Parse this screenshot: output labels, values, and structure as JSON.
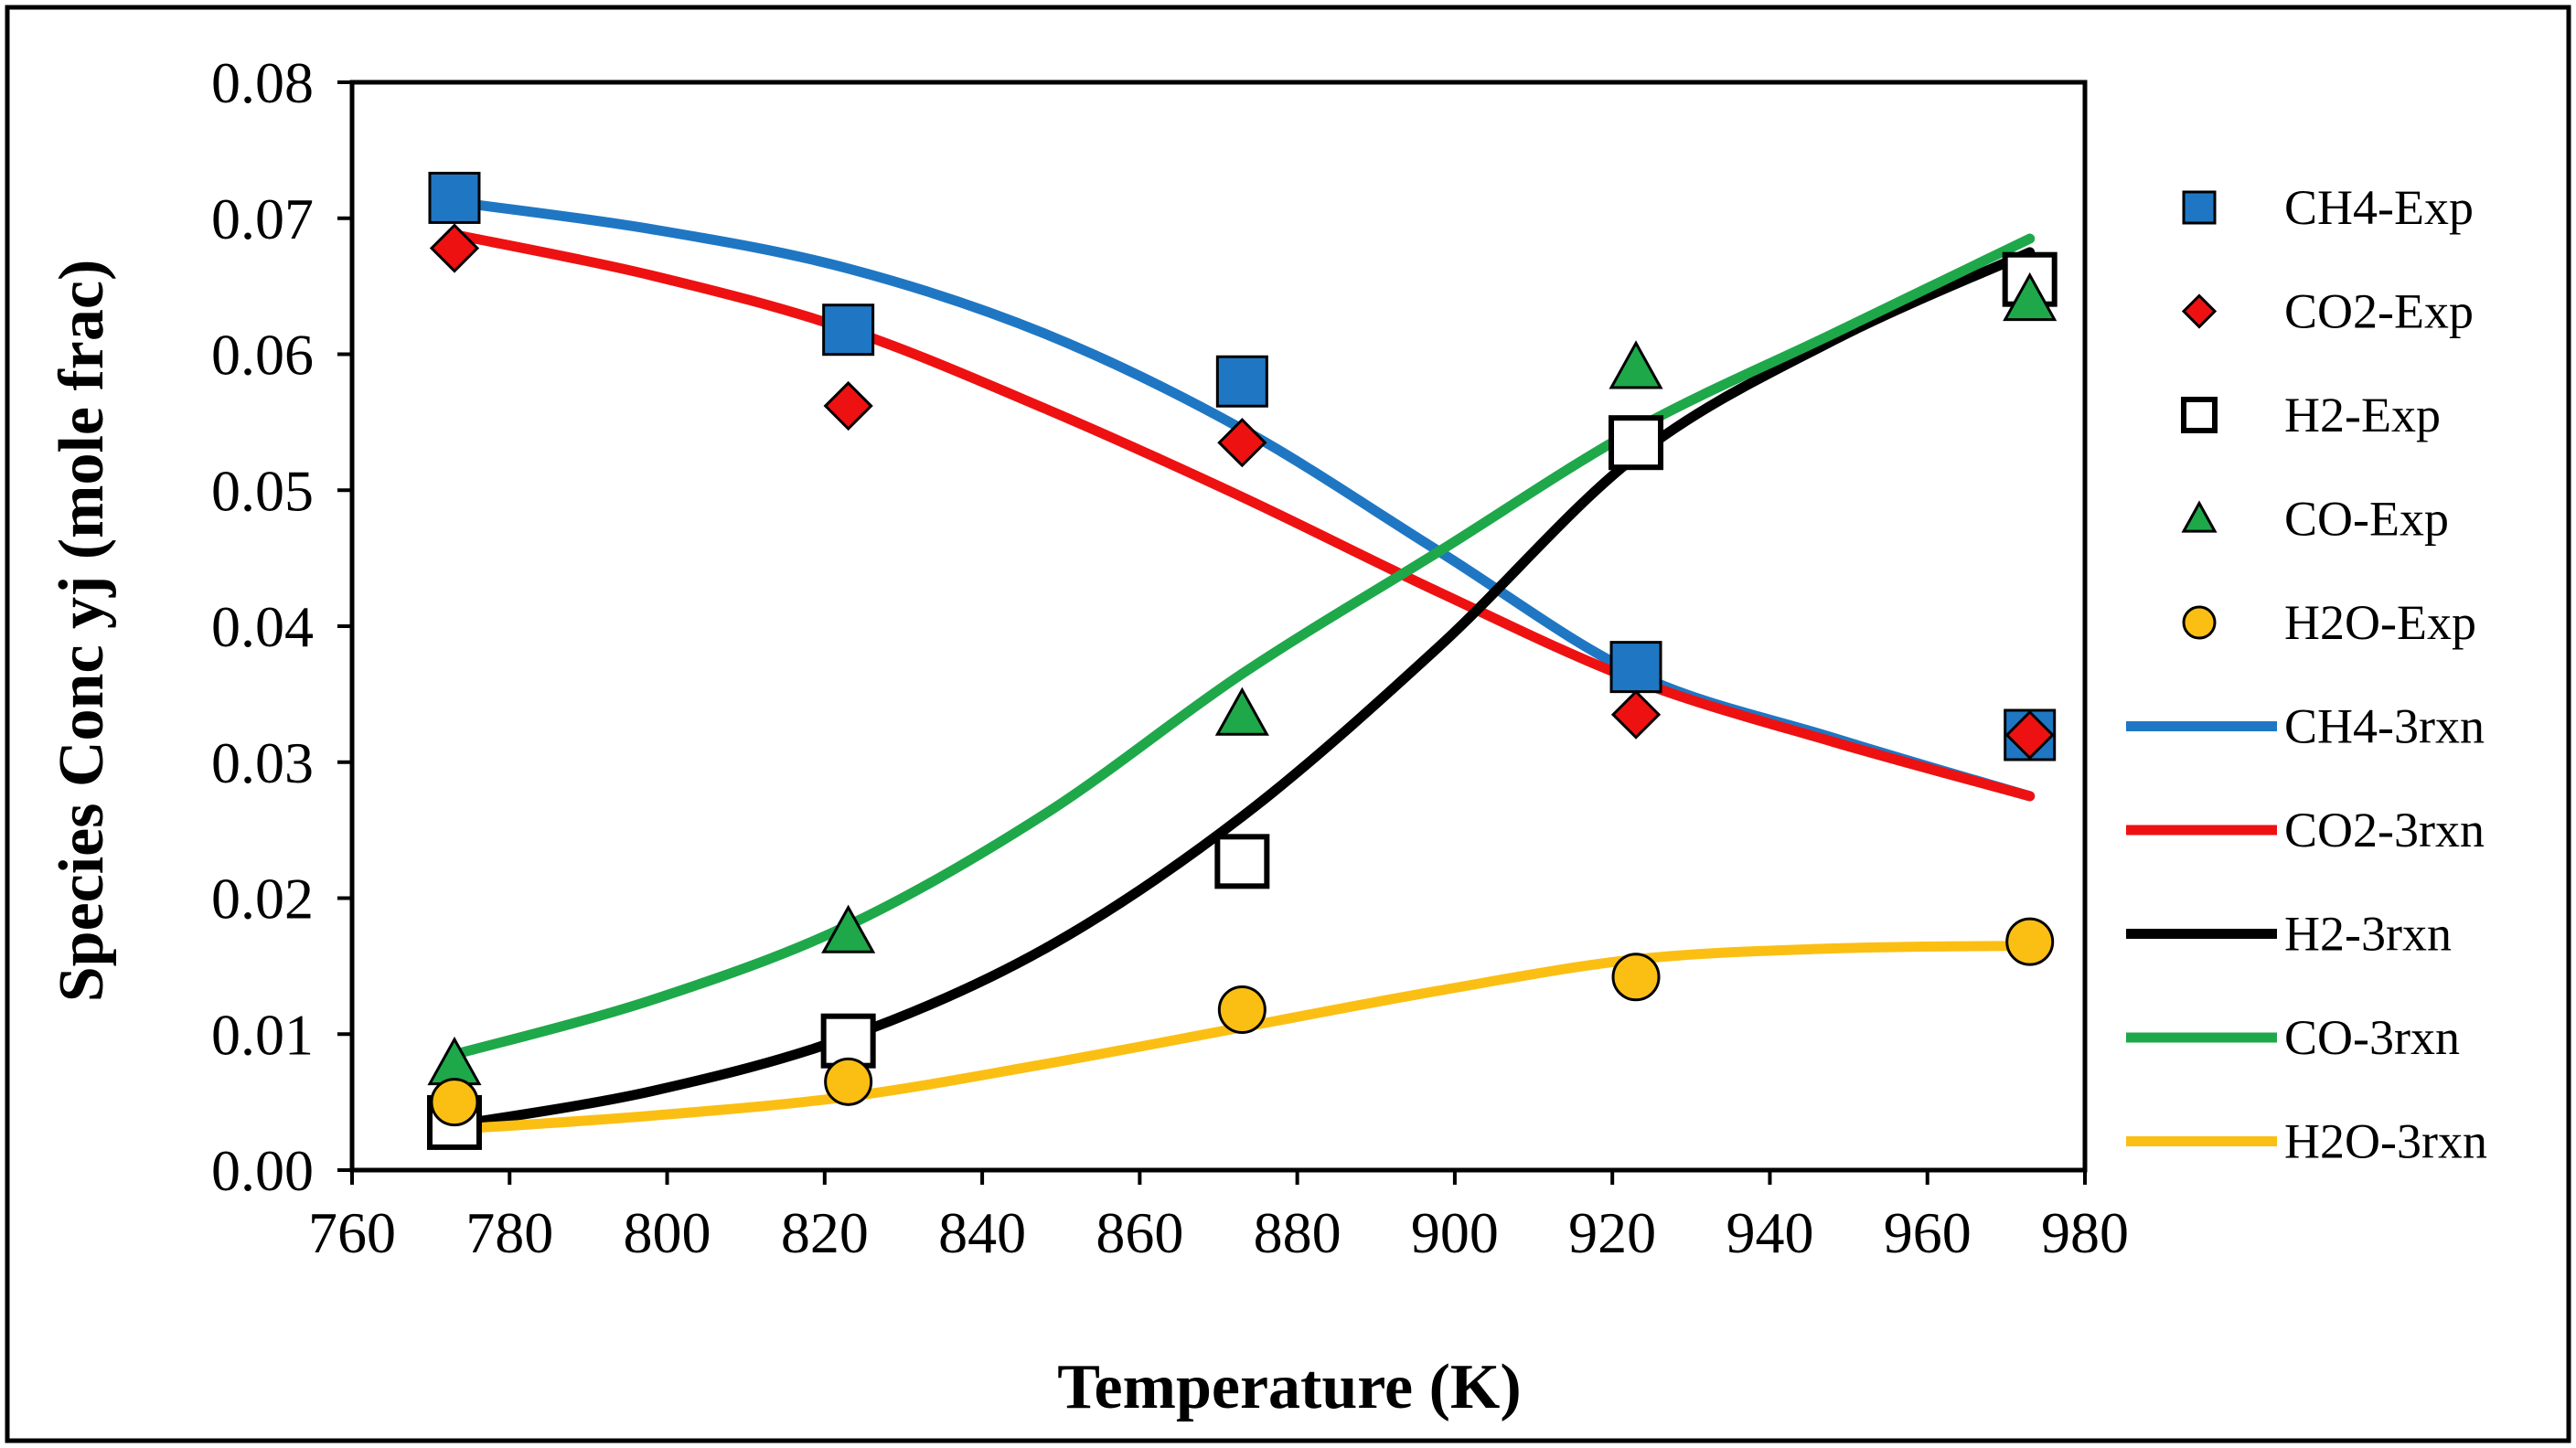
{
  "chart_data": {
    "type": "scatter",
    "title": "",
    "xlabel": "Temperature (K)",
    "ylabel": "Species Conc yj (mole frac)",
    "xlim": [
      760,
      980
    ],
    "ylim": [
      0,
      0.08
    ],
    "xticks": [
      "760",
      "780",
      "800",
      "820",
      "840",
      "860",
      "880",
      "900",
      "920",
      "940",
      "960",
      "980"
    ],
    "yticks": [
      "0.00",
      "0.01",
      "0.02",
      "0.03",
      "0.04",
      "0.05",
      "0.06",
      "0.07",
      "0.08"
    ],
    "grid": false,
    "legend_position": "right",
    "markers": [
      {
        "name": "CH4-Exp",
        "marker": "square",
        "color": "#1f77c4",
        "x": [
          773,
          823,
          873,
          923,
          973
        ],
        "y": [
          0.0715,
          0.0618,
          0.058,
          0.037,
          0.032
        ]
      },
      {
        "name": "CO2-Exp",
        "marker": "diamond",
        "color": "#ee1111",
        "x": [
          773,
          823,
          873,
          923,
          973
        ],
        "y": [
          0.0678,
          0.0562,
          0.0535,
          0.0335,
          0.032
        ]
      },
      {
        "name": "H2-Exp",
        "marker": "open-square",
        "color": "#ffffff",
        "x": [
          773,
          823,
          873,
          923,
          973
        ],
        "y": [
          0.0035,
          0.0095,
          0.0227,
          0.0535,
          0.0655
        ]
      },
      {
        "name": "CO-Exp",
        "marker": "triangle",
        "color": "#1ea84a",
        "x": [
          773,
          823,
          873,
          923,
          973
        ],
        "y": [
          0.0078,
          0.0175,
          0.0335,
          0.059,
          0.064
        ]
      },
      {
        "name": "H2O-Exp",
        "marker": "circle",
        "color": "#fbbf14",
        "x": [
          773,
          823,
          873,
          923,
          973
        ],
        "y": [
          0.005,
          0.0065,
          0.0118,
          0.0142,
          0.0168
        ]
      }
    ],
    "lines": [
      {
        "name": "CH4-3rxn",
        "color": "#1f77c4",
        "x": [
          773,
          798,
          823,
          848,
          873,
          898,
          923,
          948,
          973
        ],
        "y": [
          0.0712,
          0.0692,
          0.0663,
          0.0615,
          0.0545,
          0.0455,
          0.0365,
          0.0318,
          0.0275
        ]
      },
      {
        "name": "CO2-3rxn",
        "color": "#ee1111",
        "x": [
          773,
          798,
          823,
          848,
          873,
          898,
          923,
          948,
          973
        ],
        "y": [
          0.0688,
          0.0658,
          0.0618,
          0.056,
          0.0495,
          0.0425,
          0.036,
          0.0315,
          0.0275
        ]
      },
      {
        "name": "H2-3rxn",
        "color": "#000000",
        "x": [
          773,
          798,
          823,
          848,
          873,
          898,
          923,
          948,
          973
        ],
        "y": [
          0.0033,
          0.0058,
          0.0098,
          0.0163,
          0.026,
          0.0385,
          0.0525,
          0.061,
          0.0675
        ]
      },
      {
        "name": "CO-3rxn",
        "color": "#1ea84a",
        "x": [
          773,
          798,
          823,
          848,
          873,
          898,
          923,
          948,
          973
        ],
        "y": [
          0.0085,
          0.0125,
          0.018,
          0.0262,
          0.0365,
          0.0455,
          0.0545,
          0.0615,
          0.0685
        ]
      },
      {
        "name": "H2O-3rxn",
        "color": "#fbbf14",
        "x": [
          773,
          798,
          823,
          848,
          873,
          898,
          923,
          948,
          973
        ],
        "y": [
          0.003,
          0.004,
          0.0054,
          0.0078,
          0.0105,
          0.0132,
          0.0155,
          0.0163,
          0.0165
        ]
      }
    ]
  }
}
